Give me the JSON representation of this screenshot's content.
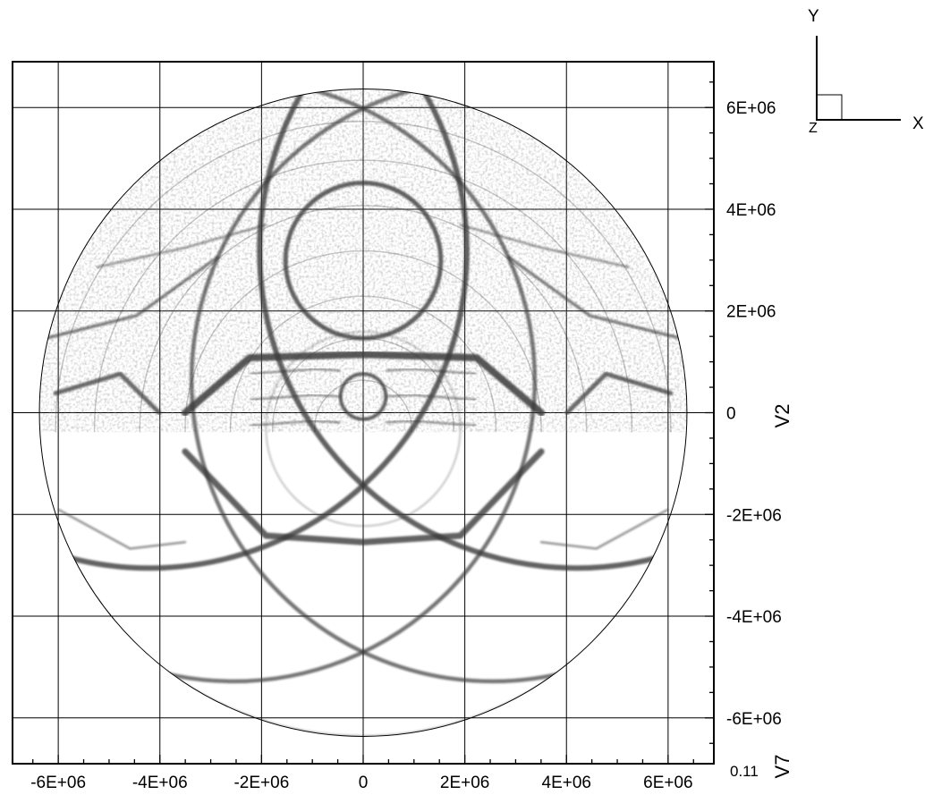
{
  "chart_data": {
    "type": "heatmap",
    "description_kind": "schlieren-like grayscale contour field on a circular domain",
    "x_axis": {
      "label": "V7",
      "range": [
        -6900000,
        6900000
      ],
      "ticks": [
        -6000000,
        -4000000,
        -2000000,
        0,
        2000000,
        4000000,
        6000000
      ],
      "tick_labels": [
        "-6E+06",
        "-4E+06",
        "-2E+06",
        "0",
        "2E+06",
        "4E+06",
        "6E+06"
      ]
    },
    "y_axis": {
      "label": "V2",
      "range": [
        -6900000,
        6900000
      ],
      "ticks": [
        6000000,
        4000000,
        2000000,
        0,
        -2000000,
        -4000000,
        -6000000
      ],
      "tick_labels": [
        "6E+06",
        "4E+06",
        "2E+06",
        "0",
        "-2E+06",
        "-4E+06",
        "-6E+06"
      ]
    },
    "extra_label": "0.11",
    "domain_radius": 6371000,
    "grid": true,
    "colormap": "grayscale"
  },
  "triad": {
    "y": "Y",
    "x": "X",
    "z": "Z"
  },
  "colors": {
    "line": "#000000",
    "field": "#3a3a3a",
    "grid": "#000000"
  }
}
